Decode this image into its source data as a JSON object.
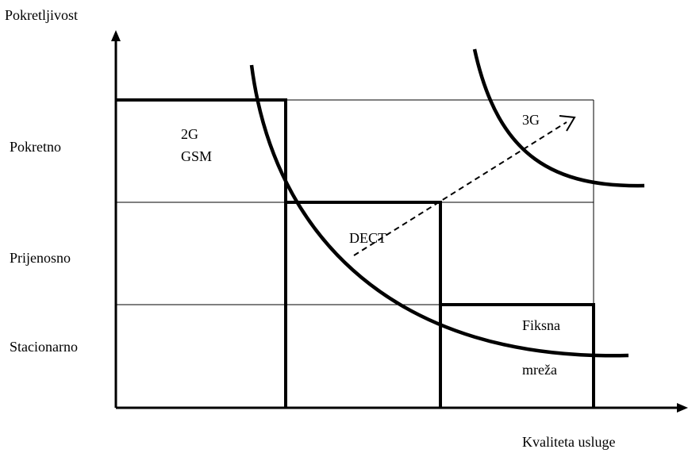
{
  "diagram": {
    "y_axis_label": "Pokretljivost",
    "x_axis_label": "Kvaliteta usluge",
    "y_levels": [
      "Pokretno",
      "Prijenosno",
      "Stacionarno"
    ],
    "regions": {
      "g2_line1": "2G",
      "g2_line2": "GSM",
      "dect": "DECT",
      "g3": "3G",
      "fixed_line1": "Fiksna",
      "fixed_line2": "mreža"
    },
    "colors": {
      "line": "#000000",
      "background": "#ffffff"
    }
  }
}
